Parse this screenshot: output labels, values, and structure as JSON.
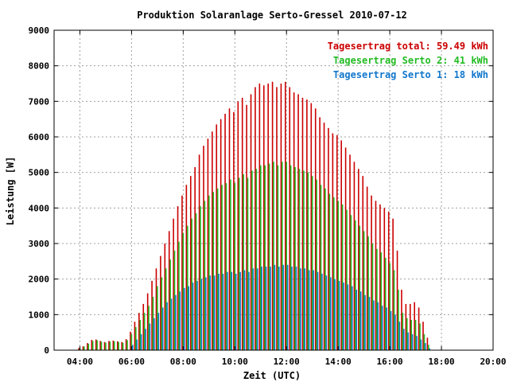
{
  "chart_data": {
    "type": "bar",
    "title": "Produktion Solaranlage Serto-Gressel 2010-07-12",
    "xlabel": "Zeit (UTC)",
    "ylabel": "Leistung [W]",
    "xlim": [
      "03:00",
      "20:00"
    ],
    "ylim": [
      0,
      9000
    ],
    "grid": true,
    "legend_position": "top-right",
    "x_ticks": [
      "04:00",
      "06:00",
      "08:00",
      "10:00",
      "12:00",
      "14:00",
      "16:00",
      "18:00",
      "20:00"
    ],
    "y_ticks": [
      "0",
      "1000",
      "2000",
      "3000",
      "4000",
      "5000",
      "6000",
      "7000",
      "8000",
      "9000"
    ],
    "legend": [
      {
        "label": "Tagesertrag total: 59.49 kWh",
        "color": "#cc0000"
      },
      {
        "label": "Tagesertrag Serto 2: 41 kWh",
        "color": "#22bb22"
      },
      {
        "label": "Tagesertrag Serto 1: 18 kWh",
        "color": "#1177cc"
      }
    ],
    "x": [
      "04:00",
      "04:10",
      "04:20",
      "04:30",
      "04:40",
      "04:50",
      "05:00",
      "05:10",
      "05:20",
      "05:30",
      "05:40",
      "05:50",
      "06:00",
      "06:10",
      "06:20",
      "06:30",
      "06:40",
      "06:50",
      "07:00",
      "07:10",
      "07:20",
      "07:30",
      "07:40",
      "07:50",
      "08:00",
      "08:10",
      "08:20",
      "08:30",
      "08:40",
      "08:50",
      "09:00",
      "09:10",
      "09:20",
      "09:30",
      "09:40",
      "09:50",
      "10:00",
      "10:10",
      "10:20",
      "10:30",
      "10:40",
      "10:50",
      "11:00",
      "11:10",
      "11:20",
      "11:30",
      "11:40",
      "11:50",
      "12:00",
      "12:10",
      "12:20",
      "12:30",
      "12:40",
      "12:50",
      "13:00",
      "13:10",
      "13:20",
      "13:30",
      "13:40",
      "13:50",
      "14:00",
      "14:10",
      "14:20",
      "14:30",
      "14:40",
      "14:50",
      "15:00",
      "15:10",
      "15:20",
      "15:30",
      "15:40",
      "15:50",
      "16:00",
      "16:10",
      "16:20",
      "16:30",
      "16:40",
      "16:50",
      "17:00",
      "17:10",
      "17:20",
      "17:30"
    ],
    "series": [
      {
        "name": "Tagesertrag total: 59.49 kWh",
        "color": "#cc0000",
        "values": [
          60,
          110,
          200,
          290,
          300,
          260,
          230,
          260,
          270,
          250,
          230,
          310,
          520,
          800,
          1050,
          1300,
          1600,
          1950,
          2300,
          2650,
          3000,
          3350,
          3700,
          4050,
          4350,
          4650,
          4900,
          5150,
          5500,
          5750,
          5950,
          6150,
          6350,
          6500,
          6650,
          6800,
          6700,
          7000,
          7100,
          6900,
          7200,
          7400,
          7500,
          7450,
          7500,
          7550,
          7400,
          7500,
          7550,
          7400,
          7250,
          7200,
          7100,
          7050,
          6950,
          6800,
          6550,
          6400,
          6250,
          6100,
          6050,
          5900,
          5700,
          5500,
          5300,
          5100,
          4900,
          4600,
          4350,
          4200,
          4100,
          4000,
          3900,
          3700,
          2800,
          1700,
          1300,
          1300,
          1350,
          1200,
          800,
          350
        ]
      },
      {
        "name": "Tagesertrag Serto 2: 41 kWh",
        "color": "#22bb22",
        "values": [
          50,
          100,
          180,
          260,
          280,
          240,
          210,
          240,
          250,
          230,
          210,
          280,
          450,
          650,
          850,
          1050,
          1250,
          1500,
          1800,
          2050,
          2300,
          2550,
          2800,
          3050,
          3300,
          3500,
          3700,
          3850,
          4050,
          4200,
          4350,
          4450,
          4550,
          4650,
          4700,
          4800,
          4700,
          4850,
          4950,
          4850,
          5050,
          5100,
          5200,
          5200,
          5250,
          5300,
          5200,
          5300,
          5300,
          5200,
          5150,
          5100,
          5050,
          5000,
          4900,
          4800,
          4650,
          4550,
          4400,
          4300,
          4200,
          4100,
          3950,
          3800,
          3650,
          3500,
          3350,
          3200,
          3000,
          2850,
          2750,
          2600,
          2450,
          2250,
          1700,
          1050,
          900,
          850,
          850,
          750,
          450,
          150
        ]
      },
      {
        "name": "Tagesertrag Serto 1: 18 kWh",
        "color": "#1177cc",
        "values": [
          0,
          0,
          0,
          0,
          0,
          0,
          0,
          0,
          0,
          0,
          0,
          0,
          150,
          300,
          450,
          600,
          750,
          900,
          1050,
          1200,
          1350,
          1450,
          1550,
          1650,
          1750,
          1800,
          1900,
          1950,
          2000,
          2050,
          2100,
          2100,
          2150,
          2150,
          2200,
          2200,
          2150,
          2200,
          2250,
          2200,
          2300,
          2300,
          2350,
          2350,
          2350,
          2400,
          2350,
          2400,
          2400,
          2350,
          2350,
          2300,
          2300,
          2250,
          2250,
          2200,
          2150,
          2100,
          2050,
          2000,
          1950,
          1900,
          1850,
          1800,
          1700,
          1650,
          1550,
          1500,
          1400,
          1350,
          1250,
          1200,
          1100,
          1000,
          800,
          600,
          500,
          450,
          400,
          300,
          200,
          50
        ]
      }
    ]
  }
}
